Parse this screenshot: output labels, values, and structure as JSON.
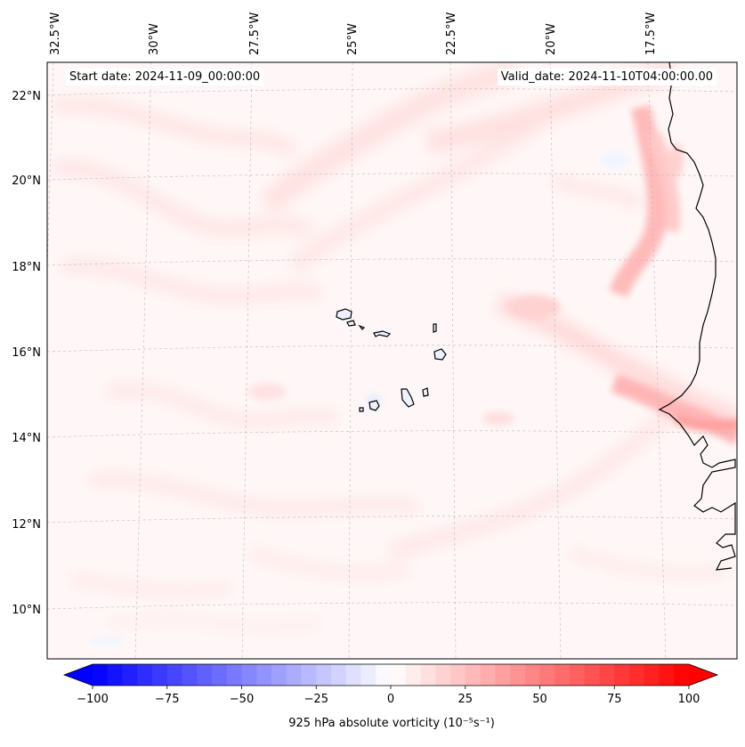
{
  "header": {
    "start_date": "Start date: 2024-11-09_00:00:00",
    "valid_date": "Valid_date: 2024-11-10T04:00:00.00"
  },
  "map": {
    "projection": "Lambert conformal",
    "lon_ticks": [
      "32.5°W",
      "30°W",
      "27.5°W",
      "25°W",
      "22.5°W",
      "20°W",
      "17.5°W"
    ],
    "lat_ticks": [
      "22°N",
      "20°N",
      "18°N",
      "16°N",
      "14°N",
      "12°N",
      "10°N"
    ],
    "features": [
      "Cape Verde islands",
      "West African coastline"
    ]
  },
  "colorbar": {
    "label": "925 hPa absolute vorticity",
    "units": "(10⁻⁵s⁻¹)",
    "ticks": [
      "−100",
      "−75",
      "−50",
      "−25",
      "0",
      "25",
      "50",
      "75",
      "100"
    ],
    "vmin": -100,
    "vmax": 100,
    "levels": 41,
    "cmap": "bwr",
    "neg_color": "#0000ff",
    "mid_color": "#ffffff",
    "pos_color": "#ff0000",
    "extend": "both"
  }
}
